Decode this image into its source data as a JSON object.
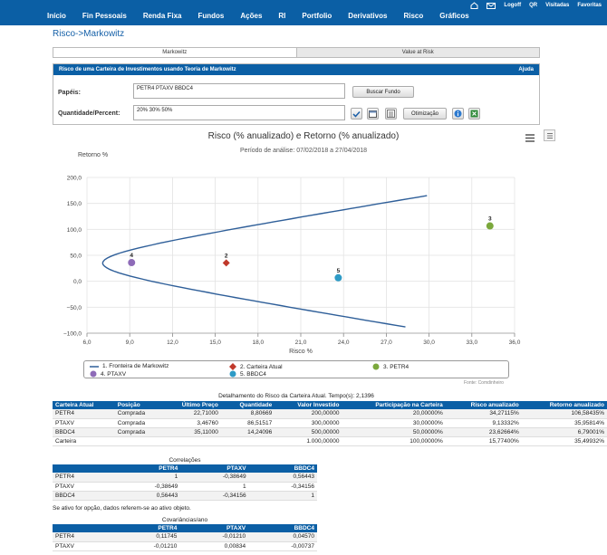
{
  "topbar": {
    "links": [
      "Logoff",
      "QR",
      "Visitadas",
      "Favoritas"
    ],
    "nav": [
      "Início",
      "Fin Pessoais",
      "Renda Fixa",
      "Fundos",
      "Ações",
      "RI",
      "Portfolio",
      "Derivativos",
      "Risco",
      "Gráficos"
    ]
  },
  "breadcrumb": "Risco->Markowitz",
  "tabs": [
    "Markowitz",
    "Value at Risk"
  ],
  "panel": {
    "title": "Risco de uma Carteira de Investimentos usando Teoria de Markowitz",
    "help": "Ajuda",
    "papeis_label": "Papéis:",
    "papeis_value": "PETR4 PTAXV BBDC4",
    "buscar_label": "Buscar Fundo",
    "quantidade_label": "Quantidade/Percent:",
    "quantidade_value": "20% 30% 50%",
    "otimizacao_label": "Otimização"
  },
  "chart_data": {
    "type": "scatter",
    "title": "Risco (% anualizado) e Retorno (% anualizado)",
    "subtitle": "Período de análise: 07/02/2018 a 27/04/2018",
    "xlabel": "Risco %",
    "ylabel": "Retorno %",
    "xlim": [
      6.0,
      36.0
    ],
    "ylim": [
      -100.0,
      200.0
    ],
    "xticks": [
      "6,0",
      "9,0",
      "12,0",
      "15,0",
      "18,0",
      "21,0",
      "24,0",
      "27,0",
      "30,0",
      "33,0",
      "36,0"
    ],
    "yticks": [
      "200,0",
      "150,0",
      "100,0",
      "50,0",
      "0,0",
      "−50,0",
      "−100,0"
    ],
    "frontier": {
      "name": "1. Fronteira de Markowitz",
      "vertex_x": 7.1,
      "vertex_y": 35.0,
      "k": 1.7
    },
    "points": [
      {
        "label": "2",
        "name": "2. Carteira Atual",
        "x": 15.77,
        "y": 35.5,
        "color": "#c0392b",
        "shape": "diamond"
      },
      {
        "label": "3",
        "name": "3. PETR4",
        "x": 34.27,
        "y": 106.59,
        "color": "#7ba83c",
        "shape": "circle"
      },
      {
        "label": "4",
        "name": "4. PTAXV",
        "x": 9.13,
        "y": 35.96,
        "color": "#8e6bb8",
        "shape": "circle"
      },
      {
        "label": "5",
        "name": "5. BBDC4",
        "x": 23.63,
        "y": 6.79,
        "color": "#2e9bc6",
        "shape": "circle"
      }
    ],
    "legend_placement": "bottom",
    "grid": true,
    "frontier_color": "#2f5f99"
  },
  "credit": "Fonte: Comdinheiro",
  "detail_caption": "Detalhamento do Risco da Carteira Atual. Tempo(s): 2,1396",
  "detail": {
    "headers": [
      "Carteira Atual",
      "Posição",
      "Último Preço",
      "Quantidade",
      "Valor Investido",
      "Participação na Carteira",
      "Risco anualizado",
      "Retorno anualizado"
    ],
    "rows": [
      [
        "PETR4",
        "Comprada",
        "22,71000",
        "8,80669",
        "200,00000",
        "20,00000%",
        "34,27115%",
        "106,58435%"
      ],
      [
        "PTAXV",
        "Comprada",
        "3,46760",
        "86,51517",
        "300,00000",
        "30,00000%",
        "9,13332%",
        "35,95814%"
      ],
      [
        "BBDC4",
        "Comprada",
        "35,11000",
        "14,24096",
        "500,00000",
        "50,00000%",
        "23,62664%",
        "6,79001%"
      ],
      [
        "Carteira",
        "",
        "",
        "",
        "1.000,00000",
        "100,00000%",
        "15,77400%",
        "35,49932%"
      ]
    ]
  },
  "correl_caption": "Correlações",
  "correl": {
    "headers": [
      "",
      "PETR4",
      "PTAXV",
      "BBDC4"
    ],
    "rows": [
      [
        "PETR4",
        "1",
        "-0,38649",
        "0,56443"
      ],
      [
        "PTAXV",
        "-0,38649",
        "1",
        "-0,34156"
      ],
      [
        "BBDC4",
        "0,56443",
        "-0,34156",
        "1"
      ]
    ]
  },
  "note": "Se ativo for opção, dados referem-se ao ativo objeto.",
  "cov_caption": "Covariâncias/ano",
  "cov": {
    "headers": [
      "",
      "PETR4",
      "PTAXV",
      "BBDC4"
    ],
    "rows": [
      [
        "PETR4",
        "0,11745",
        "-0,01210",
        "0,04570"
      ],
      [
        "PTAXV",
        "-0,01210",
        "0,00834",
        "-0,00737"
      ]
    ]
  }
}
